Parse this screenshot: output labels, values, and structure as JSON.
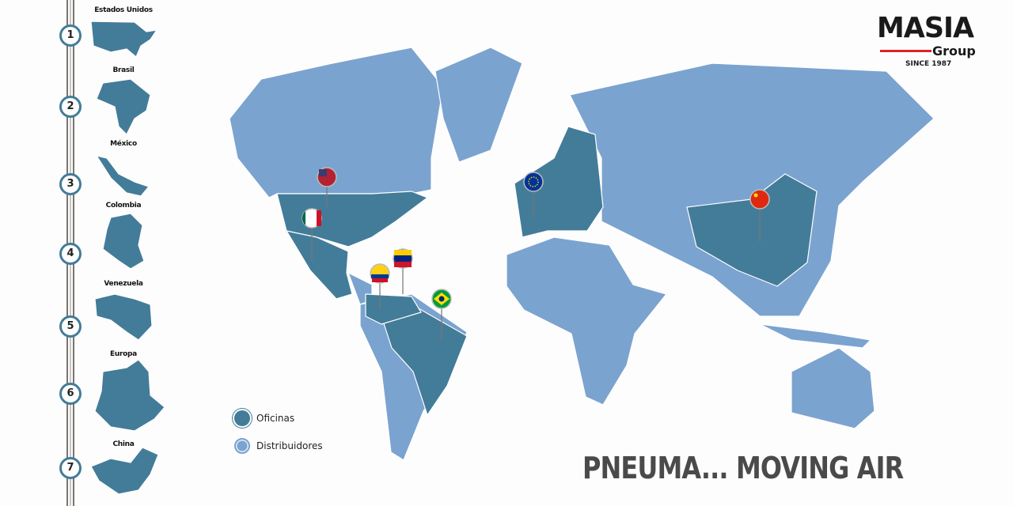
{
  "colors": {
    "oficinas": "#437c99",
    "distribuidores": "#7ba3cf",
    "accent": "#d22222"
  },
  "timeline": [
    {
      "number": "1",
      "label": "Estados Unidos"
    },
    {
      "number": "2",
      "label": "Brasil"
    },
    {
      "number": "3",
      "label": "México"
    },
    {
      "number": "4",
      "label": "Colombia"
    },
    {
      "number": "5",
      "label": "Venezuela"
    },
    {
      "number": "6",
      "label": "Europa"
    },
    {
      "number": "7",
      "label": "China"
    }
  ],
  "logo": {
    "name": "MASIA",
    "sub": "Group",
    "since": "SINCE 1987"
  },
  "legend": [
    {
      "label": "Oficinas"
    },
    {
      "label": "Distribuidores"
    }
  ],
  "pins": [
    "us-flag",
    "mexico-flag",
    "colombia-flag",
    "venezuela-flag",
    "brazil-flag",
    "eu-flag",
    "china-flag"
  ],
  "slogan": "PNEUMA... MOVING AIR"
}
